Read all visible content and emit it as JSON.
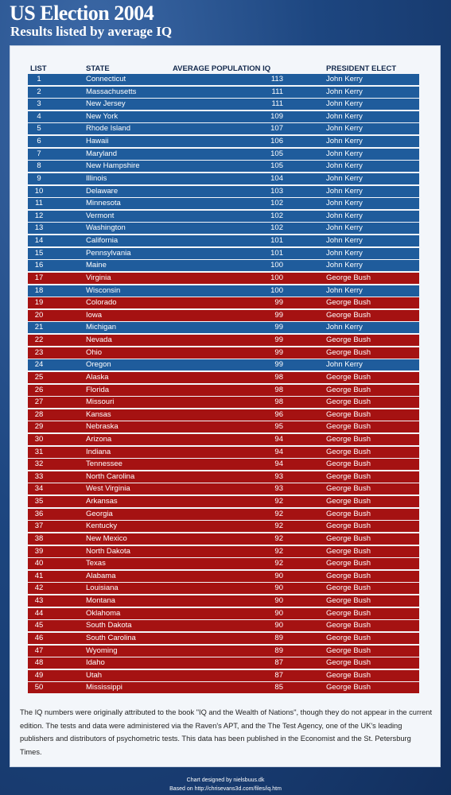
{
  "header": {
    "title": "US Election 2004",
    "subtitle": "Results listed by average IQ"
  },
  "table": {
    "columns": [
      "LIST",
      "STATE",
      "AVERAGE POPULATION IQ",
      "PRESIDENT ELECT"
    ],
    "rows": [
      [
        1,
        "Connecticut",
        113,
        "John Kerry",
        "#1f5c9c"
      ],
      [
        2,
        "Massachusetts",
        111,
        "John Kerry",
        "#1f5c9c"
      ],
      [
        3,
        "New Jersey",
        111,
        "John Kerry",
        "#1f5c9c"
      ],
      [
        4,
        "New York",
        109,
        "John Kerry",
        "#1f5c9c"
      ],
      [
        5,
        "Rhode Island",
        107,
        "John Kerry",
        "#1f5c9c"
      ],
      [
        6,
        "Hawaii",
        106,
        "John Kerry",
        "#1f5c9c"
      ],
      [
        7,
        "Maryland",
        105,
        "John Kerry",
        "#1f5c9c"
      ],
      [
        8,
        "New Hampshire",
        105,
        "John Kerry",
        "#1f5c9c"
      ],
      [
        9,
        "Illinois",
        104,
        "John Kerry",
        "#1f5c9c"
      ],
      [
        10,
        "Delaware",
        103,
        "John Kerry",
        "#1f5c9c"
      ],
      [
        11,
        "Minnesota",
        102,
        "John Kerry",
        "#1f5c9c"
      ],
      [
        12,
        "Vermont",
        102,
        "John Kerry",
        "#1f5c9c"
      ],
      [
        13,
        "Washington",
        102,
        "John Kerry",
        "#1f5c9c"
      ],
      [
        14,
        "California",
        101,
        "John Kerry",
        "#1f5c9c"
      ],
      [
        15,
        "Pennsylvania",
        101,
        "John Kerry",
        "#1f5c9c"
      ],
      [
        16,
        "Maine",
        100,
        "John Kerry",
        "#1f5c9c"
      ],
      [
        17,
        "Virginia",
        100,
        "George Bush",
        "#a51212"
      ],
      [
        18,
        "Wisconsin",
        100,
        "John Kerry",
        "#1f5c9c"
      ],
      [
        19,
        "Colorado",
        99,
        "George Bush",
        "#a51212"
      ],
      [
        20,
        "Iowa",
        99,
        "George Bush",
        "#a51212"
      ],
      [
        21,
        "Michigan",
        99,
        "John Kerry",
        "#1f5c9c"
      ],
      [
        22,
        "Nevada",
        99,
        "George Bush",
        "#a51212"
      ],
      [
        23,
        "Ohio",
        99,
        "George Bush",
        "#a51212"
      ],
      [
        24,
        "Oregon",
        99,
        "John Kerry",
        "#1f5c9c"
      ],
      [
        25,
        "Alaska",
        98,
        "George Bush",
        "#a51212"
      ],
      [
        26,
        "Florida",
        98,
        "George Bush",
        "#a51212"
      ],
      [
        27,
        "Missouri",
        98,
        "George Bush",
        "#a51212"
      ],
      [
        28,
        "Kansas",
        96,
        "George Bush",
        "#a51212"
      ],
      [
        29,
        "Nebraska",
        95,
        "George Bush",
        "#a51212"
      ],
      [
        30,
        "Arizona",
        94,
        "George Bush",
        "#a51212"
      ],
      [
        31,
        "Indiana",
        94,
        "George Bush",
        "#a51212"
      ],
      [
        32,
        "Tennessee",
        94,
        "George Bush",
        "#a51212"
      ],
      [
        33,
        "North Carolina",
        93,
        "George Bush",
        "#a51212"
      ],
      [
        34,
        "West Virginia",
        93,
        "George Bush",
        "#a51212"
      ],
      [
        35,
        "Arkansas",
        92,
        "George Bush",
        "#a51212"
      ],
      [
        36,
        "Georgia",
        92,
        "George Bush",
        "#a51212"
      ],
      [
        37,
        "Kentucky",
        92,
        "George Bush",
        "#a51212"
      ],
      [
        38,
        "New Mexico",
        92,
        "George Bush",
        "#a51212"
      ],
      [
        39,
        "North Dakota",
        92,
        "George Bush",
        "#a51212"
      ],
      [
        40,
        "Texas",
        92,
        "George Bush",
        "#a51212"
      ],
      [
        41,
        "Alabama",
        90,
        "George Bush",
        "#a51212"
      ],
      [
        42,
        "Louisiana",
        90,
        "George Bush",
        "#a51212"
      ],
      [
        43,
        "Montana",
        90,
        "George Bush",
        "#a51212"
      ],
      [
        44,
        "Oklahoma",
        90,
        "George Bush",
        "#a51212"
      ],
      [
        45,
        "South Dakota",
        90,
        "George Bush",
        "#a51212"
      ],
      [
        46,
        "South Carolina",
        89,
        "George Bush",
        "#a51212"
      ],
      [
        47,
        "Wyoming",
        89,
        "George Bush",
        "#a51212"
      ],
      [
        48,
        "Idaho",
        87,
        "George Bush",
        "#a51212"
      ],
      [
        49,
        "Utah",
        87,
        "George Bush",
        "#a51212"
      ],
      [
        50,
        "Mississippi",
        85,
        "George Bush",
        "#a51212"
      ]
    ]
  },
  "footnote": "The IQ numbers were originally attributed to the book \"IQ and the Wealth of Nations\", though they do not appear in the current edition. The tests and data were administered via the Raven's APT, and the The Test Agency, one of the UK's leading publishers and distributors of psychometric tests. This data has been published in the Economist and the St. Petersburg Times.",
  "credits": [
    "Chart designed by nielsbuus.dk",
    "Based on http://chrisevans3d.com/files/iq.htm"
  ]
}
